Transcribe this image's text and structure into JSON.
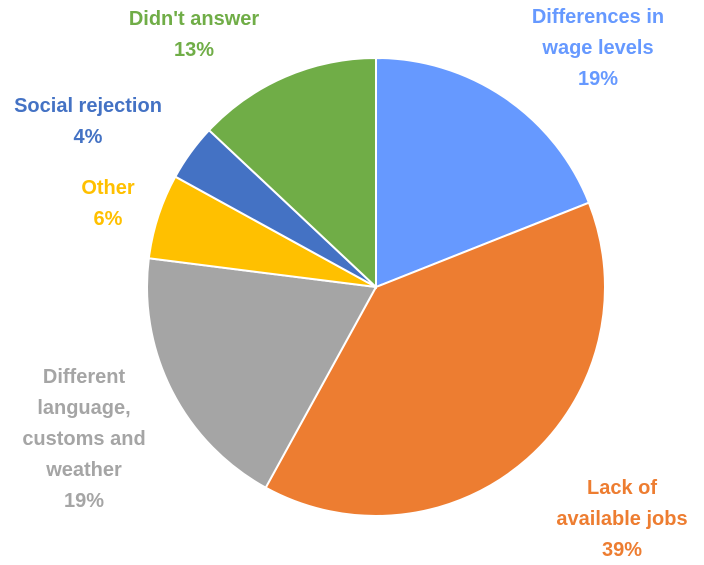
{
  "chart_data": {
    "type": "pie",
    "start_angle_deg": 0,
    "direction": "clockwise",
    "slices": [
      {
        "label_lines": [
          "Differences in",
          "wage levels"
        ],
        "pct_label": "19%",
        "value": 19,
        "color": "#6699FF"
      },
      {
        "label_lines": [
          "Lack of",
          "available jobs"
        ],
        "pct_label": "39%",
        "value": 39,
        "color": "#ED7D31"
      },
      {
        "label_lines": [
          "Different",
          "language,",
          "customs and",
          "weather"
        ],
        "pct_label": "19%",
        "value": 19,
        "color": "#A5A5A5"
      },
      {
        "label_lines": [
          "Other"
        ],
        "pct_label": "6%",
        "value": 6,
        "color": "#FFC000"
      },
      {
        "label_lines": [
          "Social rejection"
        ],
        "pct_label": "4%",
        "value": 4,
        "color": "#4472C4"
      },
      {
        "label_lines": [
          "Didn't answer"
        ],
        "pct_label": "13%",
        "value": 13,
        "color": "#70AD47"
      }
    ]
  }
}
